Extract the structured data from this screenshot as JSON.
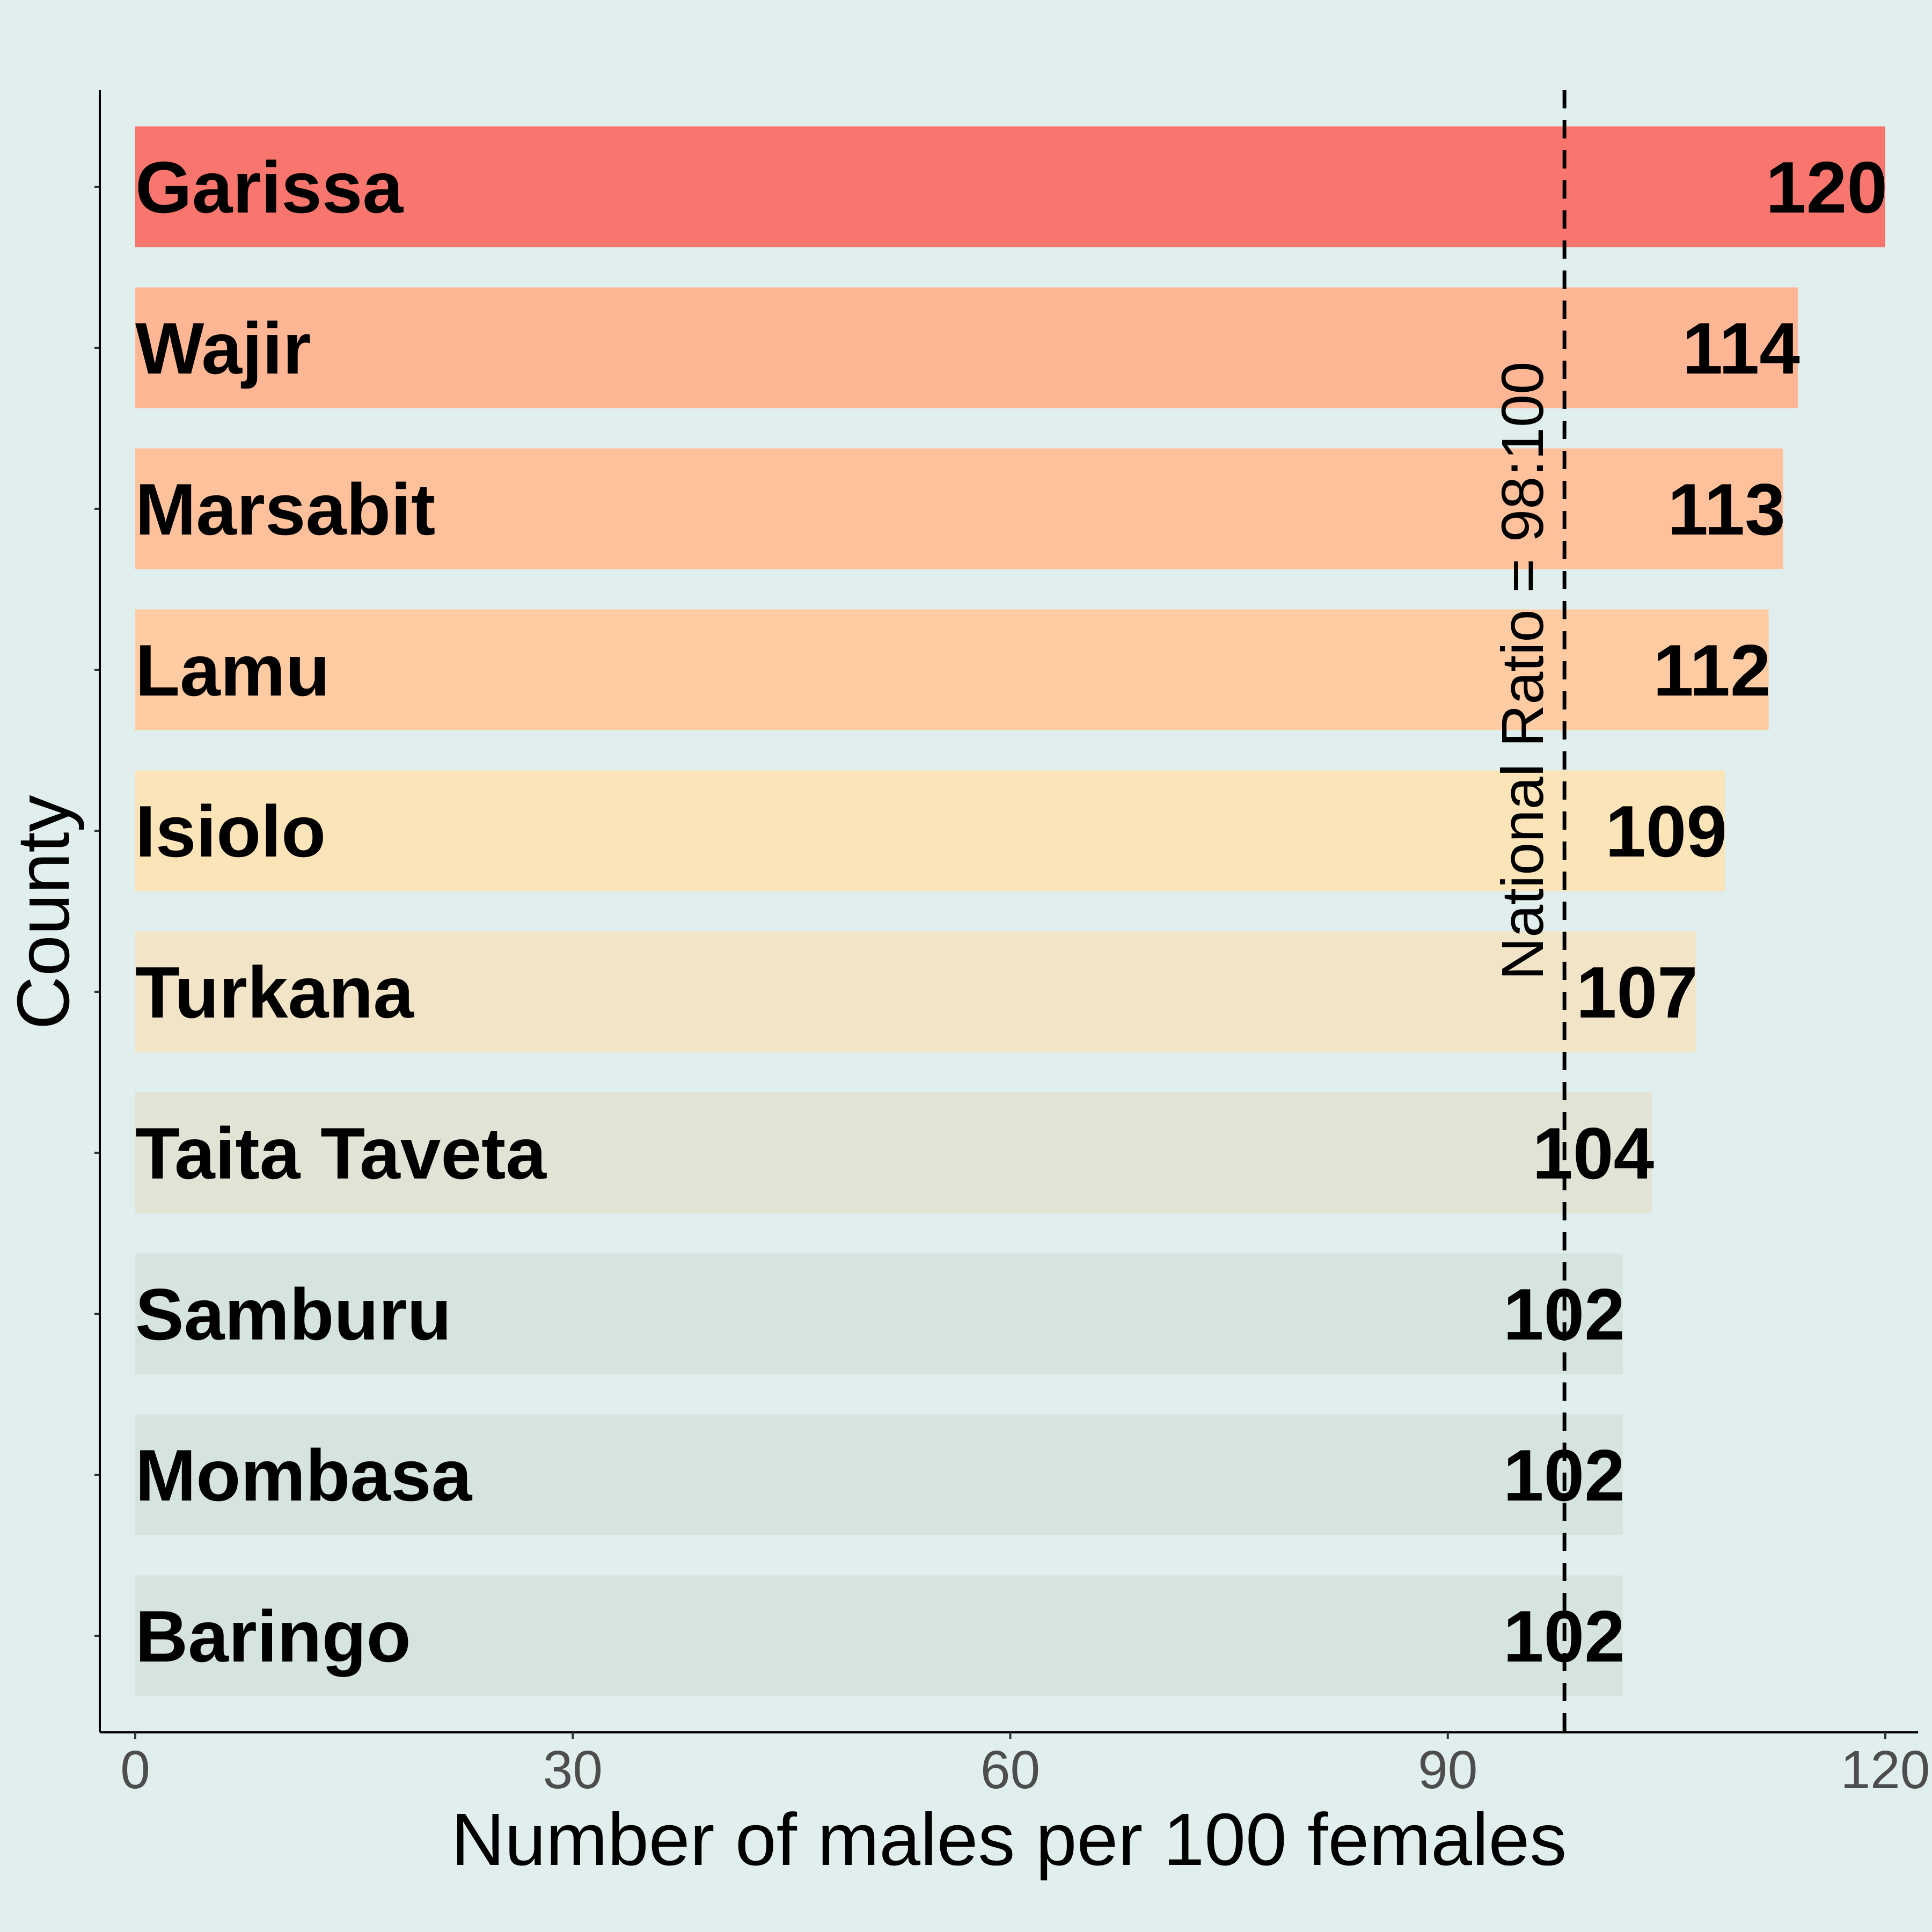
{
  "chart_data": {
    "type": "bar",
    "orientation": "horizontal",
    "categories": [
      "Garissa",
      "Wajir",
      "Marsabit",
      "Lamu",
      "Isiolo",
      "Turkana",
      "Taita Taveta",
      "Samburu",
      "Mombasa",
      "Baringo"
    ],
    "values": [
      120,
      114,
      113,
      112,
      109,
      107,
      104,
      102,
      102,
      102
    ],
    "value_labels": [
      "120",
      "114",
      "113",
      "112",
      "109",
      "107",
      "104",
      "102",
      "102",
      "102"
    ],
    "bar_colors": [
      "#f8766d",
      "#ffb694",
      "#ffc19b",
      "#ffcba2",
      "#fae4b8",
      "#f2e4c6",
      "#e2e3d4",
      "#d6e4df",
      "#d6e4df",
      "#d6e4df"
    ],
    "xlabel": "Number of males per 100 females",
    "ylabel": "County",
    "xlim": [
      0,
      120
    ],
    "xticks": [
      0,
      30,
      60,
      90,
      120
    ],
    "xtick_labels": [
      "0",
      "30",
      "60",
      "90",
      "120"
    ],
    "grid": false,
    "legend": "none",
    "reference_line": {
      "x": 98,
      "style": "dashed",
      "label": "National Ratio = 98:100"
    }
  }
}
